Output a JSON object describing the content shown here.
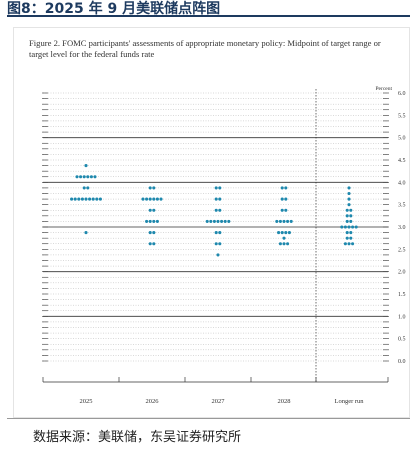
{
  "header": {
    "title": "图8：2025 年 9 月美联储点阵图"
  },
  "figure": {
    "caption": "Figure 2. FOMC participants' assessments of appropriate monetary policy: Midpoint of target range or target level for the federal funds rate"
  },
  "source_note": "数据来源：美联储，东吴证券研究所",
  "colors": {
    "dot": "#1e88ad",
    "title": "#1d3a5f"
  },
  "chart_data": {
    "type": "scatter",
    "subtype": "dot-plot",
    "ylabel": "Percent",
    "ylim": [
      0,
      6
    ],
    "y_ticks": [
      "0.0",
      "0.5",
      "1.0",
      "1.5",
      "2.0",
      "2.5",
      "3.0",
      "3.5",
      "4.0",
      "4.5",
      "5.0",
      "5.5",
      "6.0"
    ],
    "categories": [
      "2025",
      "2026",
      "2027",
      "2028",
      "Longer run"
    ],
    "grid": "dotted horizontal lines every 0.125; solid lines at 1.0, 2.0, 3.0, 4.0, 5.0",
    "dots": [
      {
        "category": "2025",
        "points": [
          {
            "y": 4.375,
            "count": 1
          },
          {
            "y": 4.125,
            "count": 6
          },
          {
            "y": 3.875,
            "count": 2
          },
          {
            "y": 3.625,
            "count": 9
          },
          {
            "y": 2.875,
            "count": 1
          }
        ]
      },
      {
        "category": "2026",
        "points": [
          {
            "y": 3.875,
            "count": 2
          },
          {
            "y": 3.625,
            "count": 6
          },
          {
            "y": 3.375,
            "count": 2
          },
          {
            "y": 3.125,
            "count": 4
          },
          {
            "y": 2.875,
            "count": 2
          },
          {
            "y": 2.625,
            "count": 2
          }
        ]
      },
      {
        "category": "2027",
        "points": [
          {
            "y": 3.875,
            "count": 2
          },
          {
            "y": 3.625,
            "count": 2
          },
          {
            "y": 3.375,
            "count": 2
          },
          {
            "y": 3.125,
            "count": 7
          },
          {
            "y": 2.875,
            "count": 2
          },
          {
            "y": 2.625,
            "count": 2
          },
          {
            "y": 2.375,
            "count": 1
          }
        ]
      },
      {
        "category": "2028",
        "points": [
          {
            "y": 3.875,
            "count": 2
          },
          {
            "y": 3.625,
            "count": 2
          },
          {
            "y": 3.375,
            "count": 2
          },
          {
            "y": 3.125,
            "count": 5
          },
          {
            "y": 2.875,
            "count": 4
          },
          {
            "y": 2.75,
            "count": 1
          },
          {
            "y": 2.625,
            "count": 3
          }
        ]
      },
      {
        "category": "Longer run",
        "points": [
          {
            "y": 3.875,
            "count": 1
          },
          {
            "y": 3.75,
            "count": 1
          },
          {
            "y": 3.625,
            "count": 1
          },
          {
            "y": 3.5,
            "count": 1
          },
          {
            "y": 3.375,
            "count": 2
          },
          {
            "y": 3.25,
            "count": 2
          },
          {
            "y": 3.125,
            "count": 2
          },
          {
            "y": 3.0,
            "count": 5
          },
          {
            "y": 2.875,
            "count": 2
          },
          {
            "y": 2.75,
            "count": 2
          },
          {
            "y": 2.625,
            "count": 3
          }
        ]
      }
    ]
  }
}
